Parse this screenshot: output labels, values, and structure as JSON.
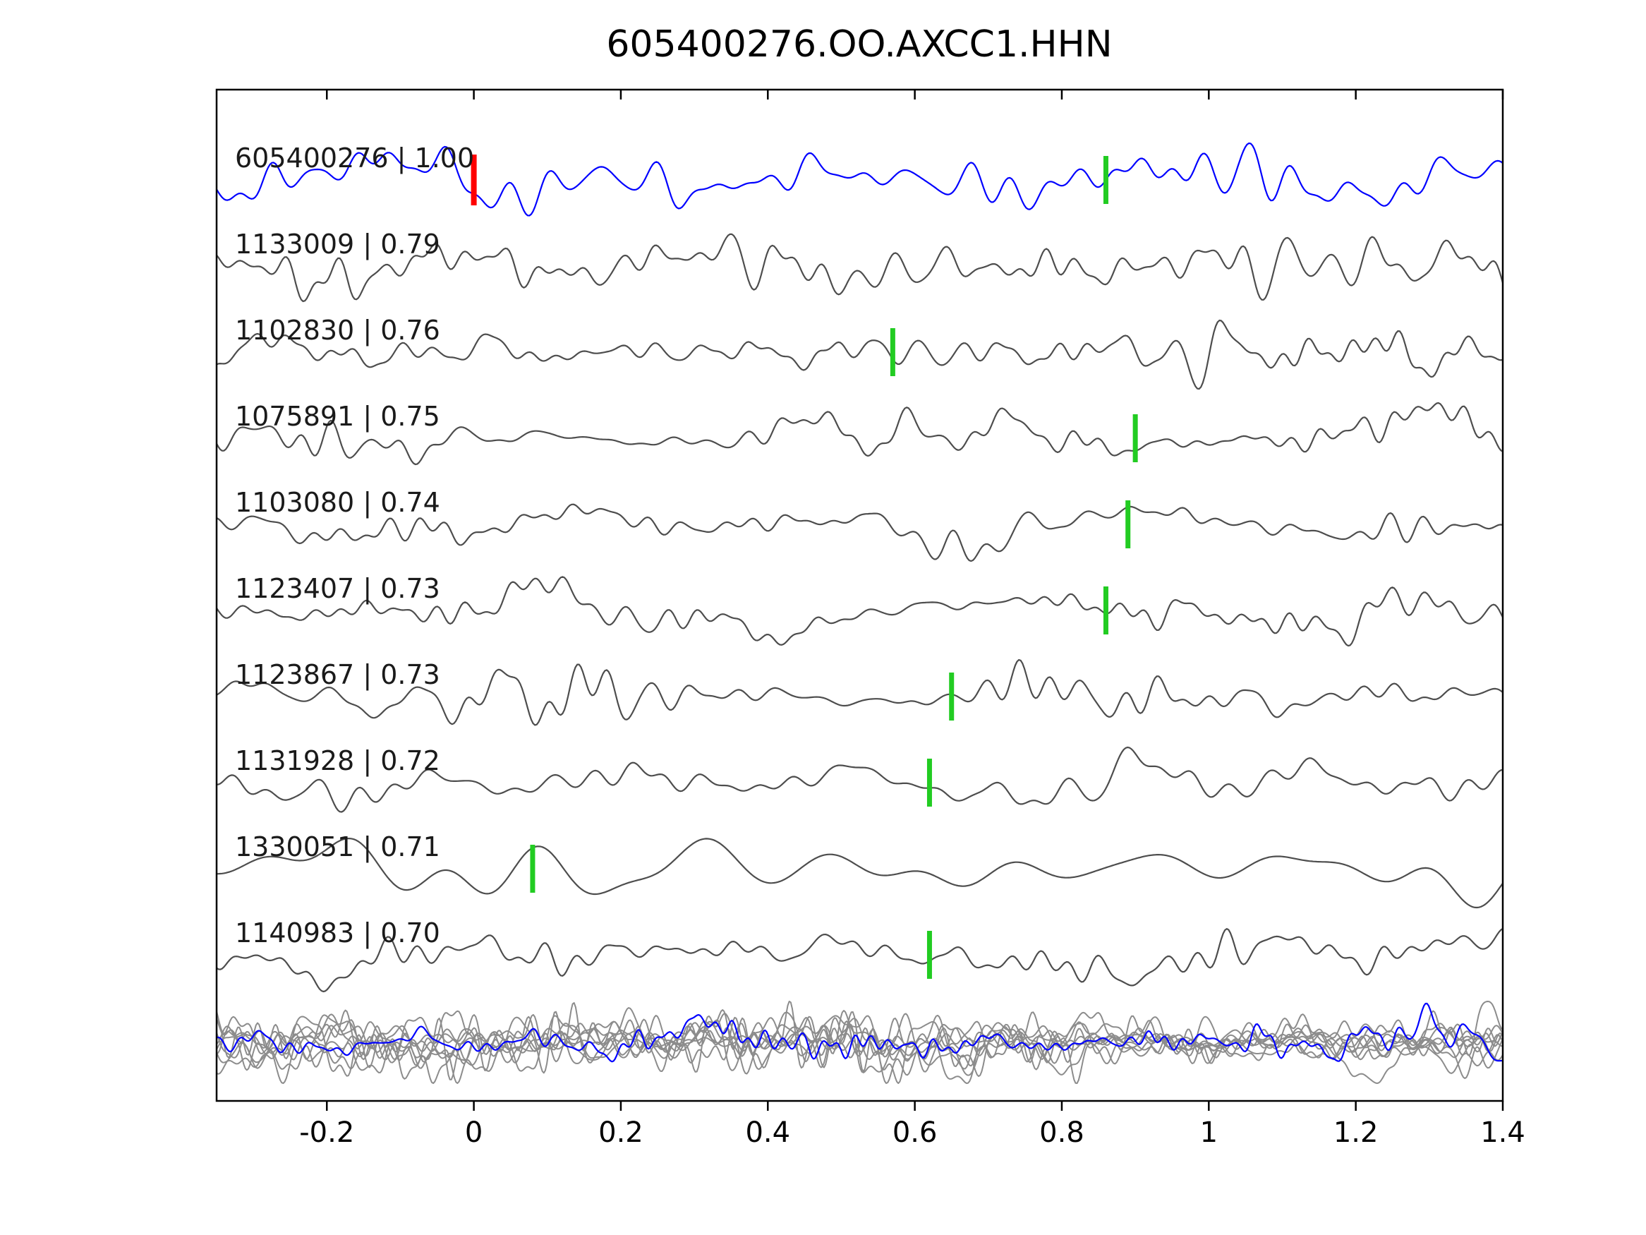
{
  "chart_data": {
    "type": "line",
    "title": "605400276.OO.AXCC1.HHN",
    "xlabel": "",
    "ylabel": "",
    "xlim": [
      -0.35,
      1.4
    ],
    "grid": false,
    "legend": null,
    "xticks": [
      -0.2,
      0,
      0.2,
      0.4,
      0.6,
      0.8,
      1,
      1.2,
      1.4
    ],
    "xtick_labels": [
      "-0.2",
      "0",
      "0.2",
      "0.4",
      "0.6",
      "0.8",
      "1",
      "1.2",
      "1.4"
    ],
    "colors": {
      "reference_trace": "#0000ff",
      "candidate_trace": "#4d4d4d",
      "overlay_trace": "#8c8c8c",
      "pick_marker": "#22cc22",
      "reference_marker": "#ff0000",
      "axes": "#000000"
    },
    "reference_marker_x": 0,
    "traces": [
      {
        "event_id": "605400276",
        "correlation": "1.00",
        "label": "605400276 | 1.00",
        "pick_x": 0.86,
        "is_reference": true,
        "seed": 101,
        "fmax": 46,
        "amp": 52
      },
      {
        "event_id": "1133009",
        "correlation": "0.79",
        "label": "1133009 | 0.79",
        "pick_x": null,
        "is_reference": false,
        "seed": 202,
        "fmax": 55,
        "amp": 50
      },
      {
        "event_id": "1102830",
        "correlation": "0.76",
        "label": "1102830 | 0.76",
        "pick_x": 0.57,
        "is_reference": false,
        "seed": 303,
        "fmax": 58,
        "amp": 52
      },
      {
        "event_id": "1075891",
        "correlation": "0.75",
        "label": "1075891 | 0.75",
        "pick_x": 0.9,
        "is_reference": false,
        "seed": 404,
        "fmax": 54,
        "amp": 50
      },
      {
        "event_id": "1103080",
        "correlation": "0.74",
        "label": "1103080 | 0.74",
        "pick_x": 0.89,
        "is_reference": false,
        "seed": 505,
        "fmax": 52,
        "amp": 52
      },
      {
        "event_id": "1123407",
        "correlation": "0.73",
        "label": "1123407 | 0.73",
        "pick_x": 0.86,
        "is_reference": false,
        "seed": 606,
        "fmax": 55,
        "amp": 50
      },
      {
        "event_id": "1123867",
        "correlation": "0.73",
        "label": "1123867 | 0.73",
        "pick_x": 0.65,
        "is_reference": false,
        "seed": 707,
        "fmax": 50,
        "amp": 52
      },
      {
        "event_id": "1131928",
        "correlation": "0.72",
        "label": "1131928 | 0.72",
        "pick_x": 0.62,
        "is_reference": false,
        "seed": 808,
        "fmax": 48,
        "amp": 50
      },
      {
        "event_id": "1330051",
        "correlation": "0.71",
        "label": "1330051 | 0.71",
        "pick_x": 0.08,
        "is_reference": false,
        "seed": 909,
        "fmax": 16,
        "amp": 55
      },
      {
        "event_id": "1140983",
        "correlation": "0.70",
        "label": "1140983 | 0.70",
        "pick_x": 0.62,
        "is_reference": false,
        "seed": 1010,
        "fmax": 50,
        "amp": 52
      }
    ],
    "overlay": {
      "gray_seeds": [
        21,
        22,
        23,
        24,
        25,
        26,
        27,
        28,
        29
      ],
      "blue_seed": 30,
      "fmax": 85,
      "amp_gray": 58,
      "amp_blue": 55
    }
  }
}
